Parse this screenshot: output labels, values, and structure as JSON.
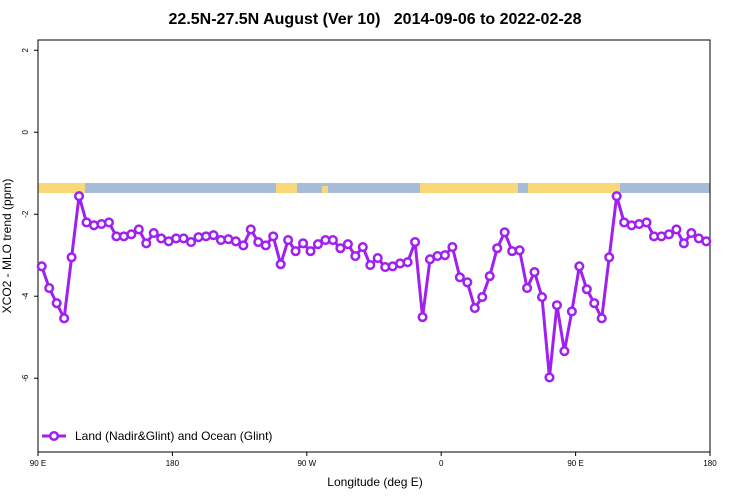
{
  "chart_data": {
    "type": "line",
    "title": "22.5N-27.5N August (Ver 10)   2014-09-06 to 2022-02-28",
    "xlabel": "Longitude (deg E)",
    "ylabel": "XCO2 - MLO trend (ppm)",
    "xlim": [
      90,
      540
    ],
    "ylim": [
      -7.8,
      2.25
    ],
    "xticks": [
      {
        "value": 90,
        "label": "90 E"
      },
      180,
      {
        "value": 270,
        "label": "90 W"
      },
      {
        "value": 360,
        "label": "0"
      },
      {
        "value": 450,
        "label": "90 E"
      },
      {
        "value": 540,
        "label": "180"
      }
    ],
    "yticks": [
      -6,
      -4,
      -2,
      0,
      2
    ],
    "legend": "bottom-left",
    "x": [
      92.5,
      97.5,
      102.5,
      107.5,
      112.5,
      117.5,
      122.5,
      127.5,
      132.5,
      137.5,
      142.5,
      147.5,
      152.5,
      157.5,
      162.5,
      167.5,
      172.5,
      177.5,
      182.5,
      187.5,
      192.5,
      197.5,
      202.5,
      207.5,
      212.5,
      217.5,
      222.5,
      227.5,
      232.5,
      237.5,
      242.5,
      247.5,
      252.5,
      257.5,
      262.5,
      267.5,
      272.5,
      277.5,
      282.5,
      287.5,
      292.5,
      297.5,
      302.5,
      307.5,
      312.5,
      317.5,
      322.5,
      327.5,
      332.5,
      337.5,
      342.5,
      347.5,
      352.5,
      357.5,
      362.5,
      367.5,
      372.5,
      377.5,
      382.5,
      387.5,
      392.5,
      397.5,
      402.5,
      407.5,
      412.5,
      417.5,
      422.5,
      427.5,
      432.5,
      437.5,
      442.5,
      447.5,
      452.5,
      457.5,
      462.5,
      467.5,
      472.5,
      477.5,
      482.5,
      487.5,
      492.5,
      497.5,
      502.5,
      507.5,
      512.5,
      517.5,
      522.5,
      527.5,
      532.5,
      537.5
    ],
    "series": [
      {
        "name": "Land (Nadir&Glint) and Ocean (Glint)",
        "color": "#a020f0",
        "values": [
          -3.27,
          -3.8,
          -4.17,
          -4.54,
          -3.05,
          -1.56,
          -2.2,
          -2.27,
          -2.24,
          -2.2,
          -2.54,
          -2.54,
          -2.49,
          -2.37,
          -2.71,
          -2.46,
          -2.59,
          -2.66,
          -2.59,
          -2.59,
          -2.68,
          -2.56,
          -2.54,
          -2.51,
          -2.63,
          -2.61,
          -2.66,
          -2.76,
          -2.37,
          -2.68,
          -2.76,
          -2.54,
          -3.22,
          -2.63,
          -2.9,
          -2.71,
          -2.9,
          -2.73,
          -2.63,
          -2.63,
          -2.83,
          -2.73,
          -3.02,
          -2.8,
          -3.24,
          -3.07,
          -3.29,
          -3.27,
          -3.2,
          -3.17,
          -2.68,
          -4.51,
          -3.1,
          -3.02,
          -3.0,
          -2.8,
          -3.54,
          -3.66,
          -4.29,
          -4.02,
          -3.51,
          -2.83,
          -2.44,
          -2.9,
          -2.88,
          -3.8,
          -3.41,
          -4.02,
          -5.98,
          -4.22,
          -5.34,
          -4.37,
          -3.27,
          -3.83,
          -4.17,
          -4.54,
          -3.05,
          -1.56,
          -2.2,
          -2.27,
          -2.24,
          -2.2,
          -2.54,
          -2.54,
          -2.49,
          -2.37,
          -2.71,
          -2.46,
          -2.59,
          -2.66
        ]
      }
    ]
  }
}
